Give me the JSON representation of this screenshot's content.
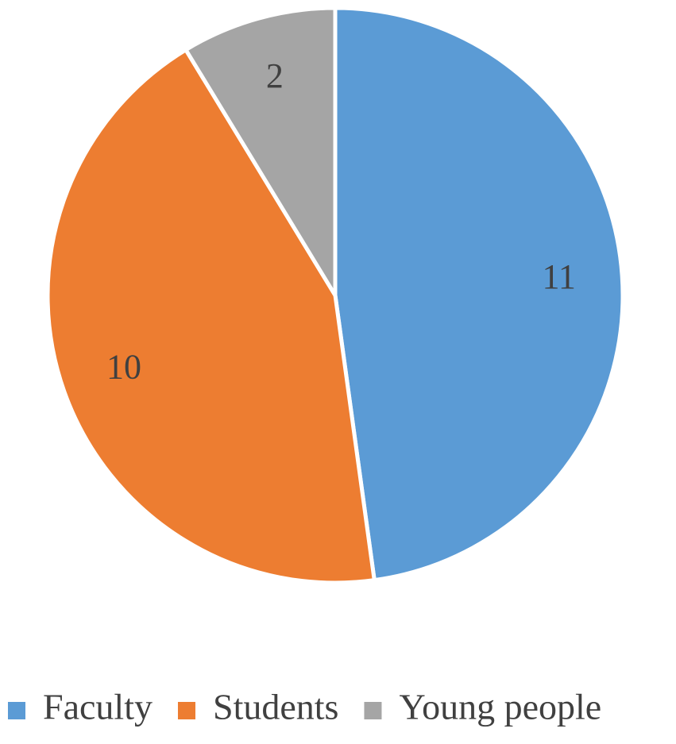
{
  "chart_data": {
    "type": "pie",
    "categories": [
      "Faculty",
      "Students",
      "Young people"
    ],
    "values": [
      11,
      10,
      2
    ],
    "colors": [
      "#5b9bd5",
      "#ed7d31",
      "#a5a5a5"
    ],
    "legend": "bottom"
  }
}
